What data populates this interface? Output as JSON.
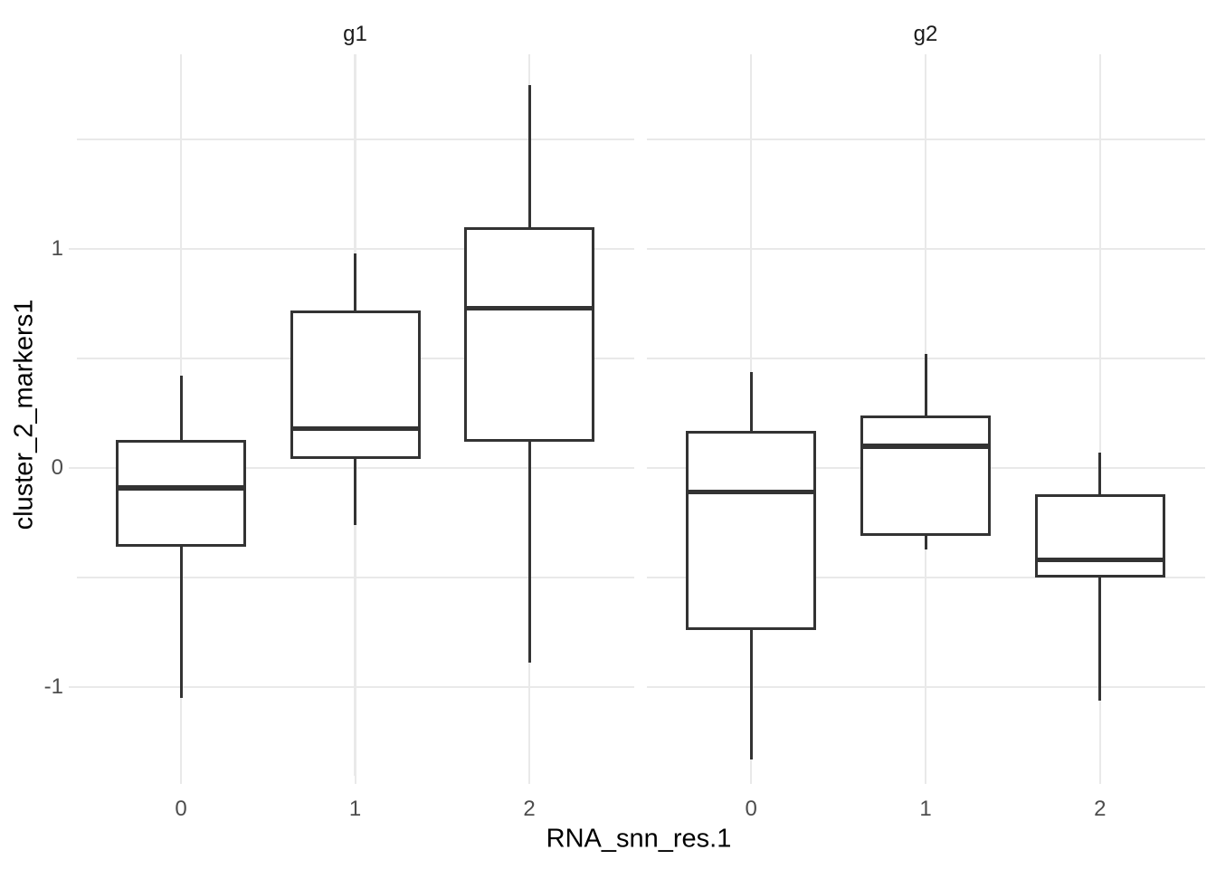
{
  "chart_data": {
    "type": "boxplot",
    "title": "",
    "xlabel": "RNA_snn_res.1",
    "ylabel": "cluster_2_markers1",
    "x_categories": [
      "0",
      "1",
      "2"
    ],
    "y_major_ticks": [
      1,
      0,
      -1
    ],
    "y_minor_gridlines": [
      1.5,
      0.5,
      -0.5
    ],
    "ylim": [
      -1.41,
      1.89
    ],
    "grid": true,
    "legend_position": "none",
    "facets": [
      {
        "label": "g1",
        "boxes": [
          {
            "category": "0",
            "whisker_low": -1.05,
            "q1": -0.36,
            "median": -0.09,
            "q3": 0.13,
            "whisker_high": 0.42
          },
          {
            "category": "1",
            "whisker_low": -0.26,
            "q1": 0.04,
            "median": 0.18,
            "q3": 0.72,
            "whisker_high": 0.98
          },
          {
            "category": "2",
            "whisker_low": -0.89,
            "q1": 0.12,
            "median": 0.73,
            "q3": 1.1,
            "whisker_high": 1.75
          }
        ]
      },
      {
        "label": "g2",
        "boxes": [
          {
            "category": "0",
            "whisker_low": -1.33,
            "q1": -0.74,
            "median": -0.11,
            "q3": 0.17,
            "whisker_high": 0.44
          },
          {
            "category": "1",
            "whisker_low": -0.37,
            "q1": -0.31,
            "median": 0.1,
            "q3": 0.24,
            "whisker_high": 0.52
          },
          {
            "category": "2",
            "whisker_low": -1.06,
            "q1": -0.5,
            "median": -0.42,
            "q3": -0.12,
            "whisker_high": 0.07
          }
        ]
      }
    ],
    "colors": {
      "box_stroke": "#333333",
      "box_fill": "#FFFFFF",
      "gridline": "#E9E9E9",
      "axis_tick_label": "#4D4D4D",
      "axis_title": "#000000",
      "strip_text": "#1A1A1A",
      "background": "#FFFFFF"
    }
  }
}
